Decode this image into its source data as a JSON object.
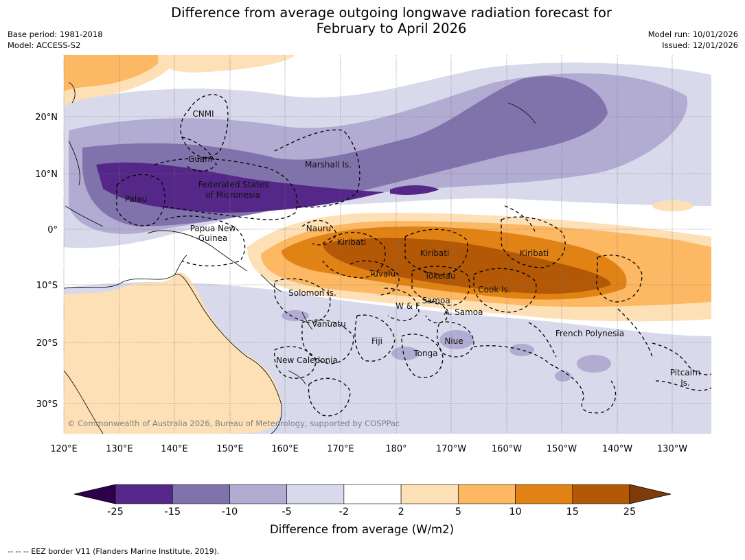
{
  "title": {
    "line1": "Difference from average outgoing longwave radiation forecast for",
    "line2": "February to April 2026"
  },
  "meta_left": {
    "base_period": "Base period: 1981-2018",
    "model": "Model: ACCESS-S2"
  },
  "meta_right": {
    "model_run": "Model run: 10/01/2026",
    "issued": "Issued: 12/01/2026"
  },
  "map": {
    "lon_labels": [
      "120°E",
      "130°E",
      "140°E",
      "150°E",
      "160°E",
      "170°E",
      "180°",
      "170°W",
      "160°W",
      "150°W",
      "140°W",
      "130°W"
    ],
    "lat_labels": [
      "20°N",
      "10°N",
      "0°",
      "10°S",
      "20°S",
      "30°S"
    ],
    "regions": [
      "CNMI",
      "Guam",
      "Marshall Is.",
      "Federated States",
      "of Micronesia",
      "Palau",
      "Nauru",
      "Papua New",
      "Guinea",
      "Kiribati",
      "Kiribati",
      "Kiribati",
      "Tuvalu",
      "Tokelau",
      "Cook Is.",
      "Solomon Is.",
      "W & F",
      "Samoa",
      "A. Samoa",
      "Vanuatu",
      "Fiji",
      "Niue",
      "Tonga",
      "French Polynesia",
      "New Caledonia",
      "Pitcairn",
      "Is."
    ],
    "copyright": "© Commonwealth of Australia 2026, Bureau of Meteorology, supported by COSPPac"
  },
  "colorbar": {
    "ticks": [
      "-25",
      "-15",
      "-10",
      "-5",
      "-2",
      "2",
      "5",
      "10",
      "15",
      "25"
    ],
    "title": "Difference from average (W/m2)",
    "min_extend_color": "#2d004b",
    "max_extend_color": "#7f3b08",
    "bins": [
      "#542788",
      "#8073ac",
      "#b2abd2",
      "#d8daeb",
      "#ffffff",
      "#fee0b6",
      "#fdb863",
      "#e08214",
      "#b35806"
    ]
  },
  "footnote": "--  --  -- EEZ border V11 (Flanders Marine Institute, 2019)."
}
